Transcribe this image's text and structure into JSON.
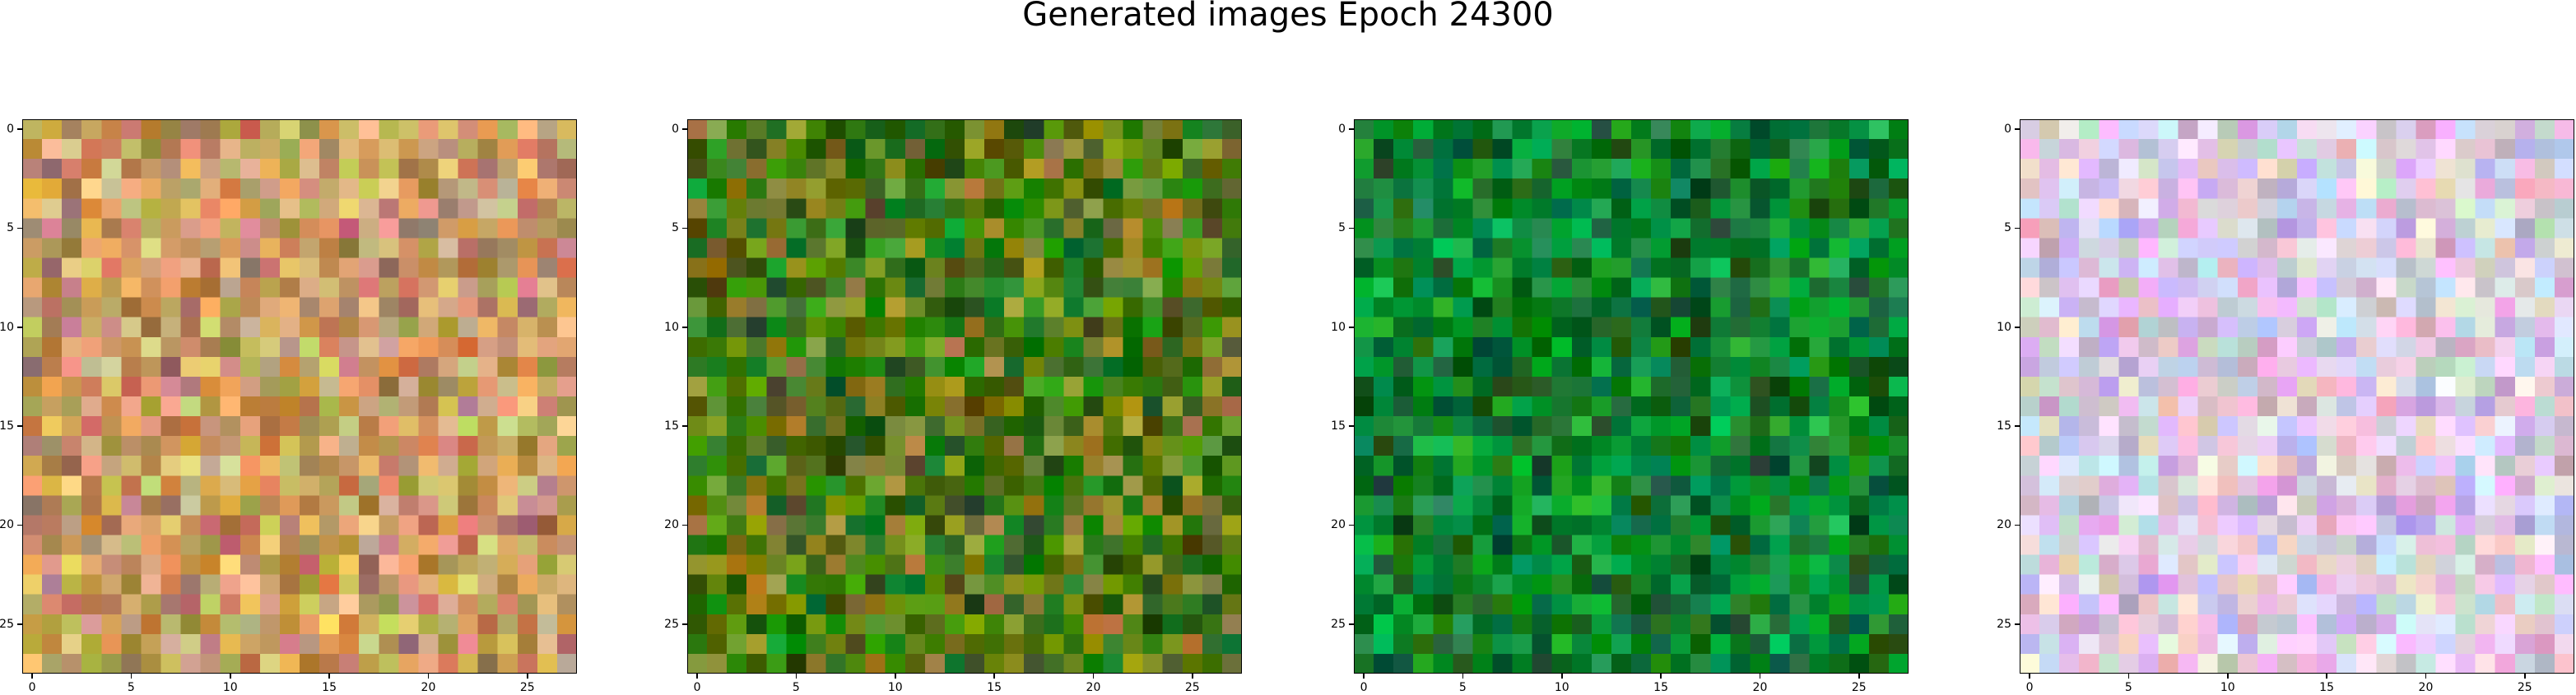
{
  "figure": {
    "title": "Generated images Epoch 24300"
  },
  "chart_data": {
    "type": "heatmap",
    "title": "Generated images Epoch 24300",
    "panels": [
      {
        "name": "",
        "grid_size": [
          28,
          28
        ],
        "palette": [
          "#c79a5a",
          "#d8b070",
          "#b98a4c",
          "#e0c080",
          "#a97a56",
          "#cf9c7a"
        ],
        "xticks": [
          0,
          5,
          10,
          15,
          20,
          25
        ],
        "yticks": [
          0,
          5,
          10,
          15,
          20,
          25
        ],
        "xlim": [
          -0.5,
          27.5
        ],
        "ylim": [
          27.5,
          -0.5
        ]
      },
      {
        "name": "",
        "grid_size": [
          28,
          28
        ],
        "palette": [
          "#1f6b12",
          "#2e8a1a",
          "#5a7a18",
          "#3a5a10",
          "#7a8a20",
          "#9a8a30"
        ],
        "xticks": [
          0,
          5,
          10,
          15,
          20,
          25
        ],
        "yticks": [
          0,
          5,
          10,
          15,
          20,
          25
        ],
        "xlim": [
          -0.5,
          27.5
        ],
        "ylim": [
          27.5,
          -0.5
        ]
      },
      {
        "name": "",
        "grid_size": [
          28,
          28
        ],
        "palette": [
          "#0a7a2a",
          "#109a3a",
          "#068a30",
          "#0e6a24",
          "#16aa44",
          "#0c5a20"
        ],
        "xticks": [
          0,
          5,
          10,
          15,
          20,
          25
        ],
        "yticks": [
          0,
          5,
          10,
          15,
          20,
          25
        ],
        "xlim": [
          -0.5,
          27.5
        ],
        "ylim": [
          27.5,
          -0.5
        ]
      },
      {
        "name": "",
        "grid_size": [
          28,
          28
        ],
        "palette": [
          "#d9c6e0",
          "#e6d0ea",
          "#c8b6d8",
          "#efdaf0",
          "#d4c0cc",
          "#cfd0e8"
        ],
        "xticks": [
          0,
          5,
          10,
          15,
          20,
          25
        ],
        "yticks": [
          0,
          5,
          10,
          15,
          20,
          25
        ],
        "xlim": [
          -0.5,
          27.5
        ],
        "ylim": [
          27.5,
          -0.5
        ]
      }
    ]
  }
}
